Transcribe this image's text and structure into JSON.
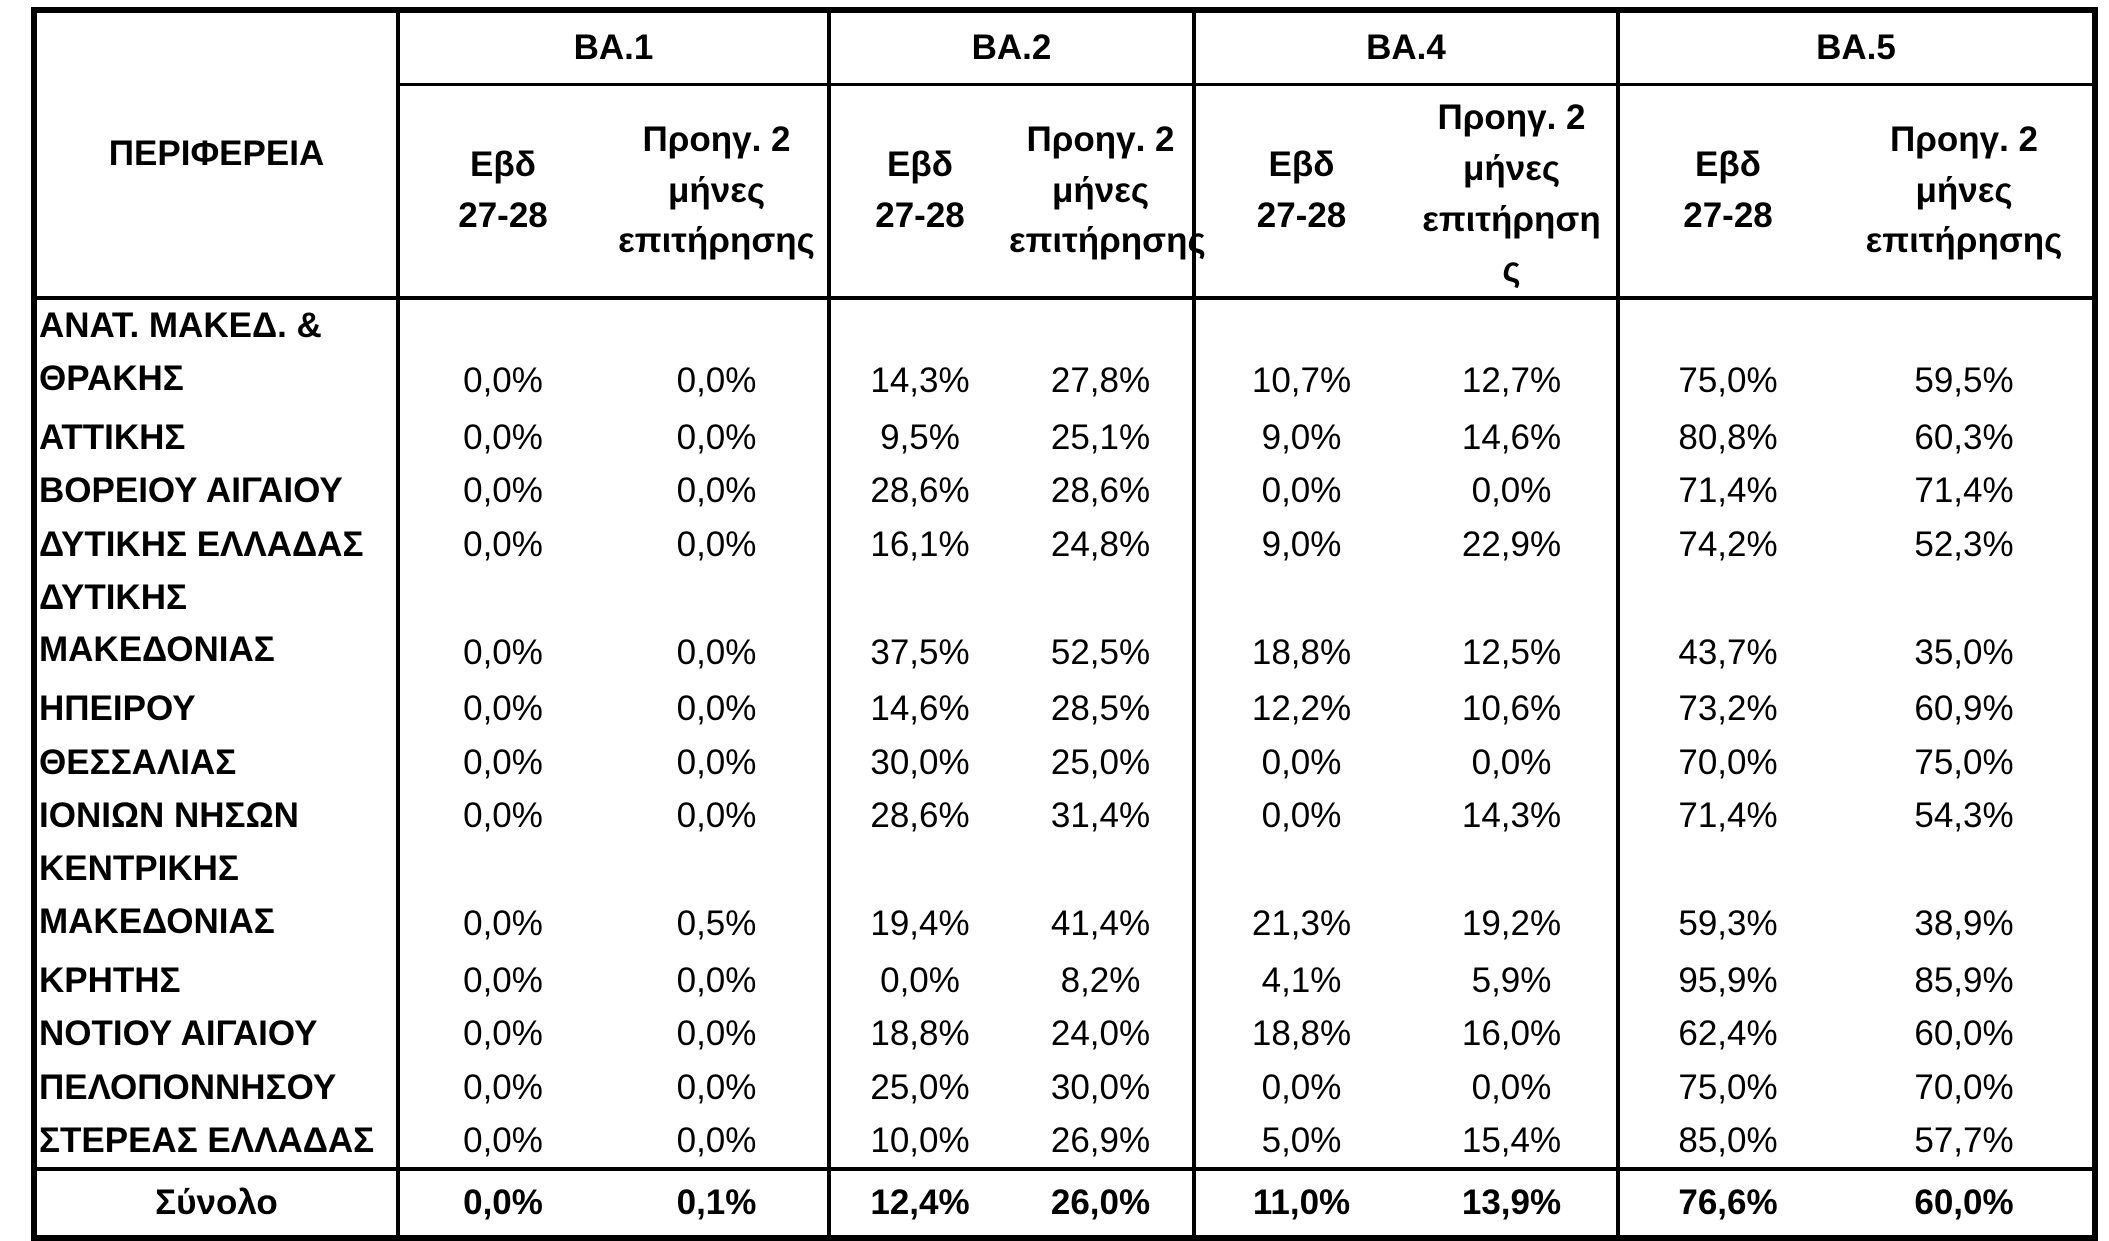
{
  "table": {
    "region_header": "ΠΕΡΙΦΕΡΕΙΑ",
    "groups": [
      "ΒΑ.1",
      "ΒΑ.2",
      "ΒΑ.4",
      "ΒΑ.5"
    ],
    "subheaders": [
      [
        "Εβδ",
        "27-28"
      ],
      [
        "Προηγ. 2",
        "μήνες",
        "επιτήρησης"
      ],
      [
        "Εβδ",
        "27-28"
      ],
      [
        "Προηγ. 2",
        "μήνες",
        "επιτήρησης"
      ],
      [
        "Εβδ",
        "27-28"
      ],
      [
        "Προηγ. 2",
        "μήνες",
        "επιτήρηση",
        "ς"
      ],
      [
        "Εβδ",
        "27-28"
      ],
      [
        "Προηγ. 2",
        "μήνες",
        "επιτήρησης"
      ]
    ],
    "rows": [
      {
        "name": [
          "ΑΝΑΤ. ΜΑΚΕΔ. &",
          "ΘΡΑΚΗΣ"
        ],
        "values": [
          "0,0%",
          "0,0%",
          "14,3%",
          "27,8%",
          "10,7%",
          "12,7%",
          "75,0%",
          "59,5%"
        ]
      },
      {
        "name": [
          "ΑΤΤΙΚΗΣ"
        ],
        "values": [
          "0,0%",
          "0,0%",
          "9,5%",
          "25,1%",
          "9,0%",
          "14,6%",
          "80,8%",
          "60,3%"
        ]
      },
      {
        "name": [
          "ΒΟΡΕΙΟΥ ΑΙΓΑΙΟΥ"
        ],
        "values": [
          "0,0%",
          "0,0%",
          "28,6%",
          "28,6%",
          "0,0%",
          "0,0%",
          "71,4%",
          "71,4%"
        ]
      },
      {
        "name": [
          "ΔΥΤΙΚΗΣ ΕΛΛΑΔΑΣ"
        ],
        "values": [
          "0,0%",
          "0,0%",
          "16,1%",
          "24,8%",
          "9,0%",
          "22,9%",
          "74,2%",
          "52,3%"
        ]
      },
      {
        "name": [
          "ΔΥΤΙΚΗΣ",
          "ΜΑΚΕΔΟΝΙΑΣ"
        ],
        "values": [
          "0,0%",
          "0,0%",
          "37,5%",
          "52,5%",
          "18,8%",
          "12,5%",
          "43,7%",
          "35,0%"
        ]
      },
      {
        "name": [
          "ΗΠΕΙΡΟΥ"
        ],
        "values": [
          "0,0%",
          "0,0%",
          "14,6%",
          "28,5%",
          "12,2%",
          "10,6%",
          "73,2%",
          "60,9%"
        ]
      },
      {
        "name": [
          "ΘΕΣΣΑΛΙΑΣ"
        ],
        "values": [
          "0,0%",
          "0,0%",
          "30,0%",
          "25,0%",
          "0,0%",
          "0,0%",
          "70,0%",
          "75,0%"
        ]
      },
      {
        "name": [
          "ΙΟΝΙΩΝ ΝΗΣΩΝ"
        ],
        "values": [
          "0,0%",
          "0,0%",
          "28,6%",
          "31,4%",
          "0,0%",
          "14,3%",
          "71,4%",
          "54,3%"
        ]
      },
      {
        "name": [
          "ΚΕΝΤΡΙΚΗΣ",
          "ΜΑΚΕΔΟΝΙΑΣ"
        ],
        "values": [
          "0,0%",
          "0,5%",
          "19,4%",
          "41,4%",
          "21,3%",
          "19,2%",
          "59,3%",
          "38,9%"
        ]
      },
      {
        "name": [
          "ΚΡΗΤΗΣ"
        ],
        "values": [
          "0,0%",
          "0,0%",
          "0,0%",
          "8,2%",
          "4,1%",
          "5,9%",
          "95,9%",
          "85,9%"
        ]
      },
      {
        "name": [
          "ΝΟΤΙΟΥ ΑΙΓΑΙΟΥ"
        ],
        "values": [
          "0,0%",
          "0,0%",
          "18,8%",
          "24,0%",
          "18,8%",
          "16,0%",
          "62,4%",
          "60,0%"
        ]
      },
      {
        "name": [
          "ΠΕΛΟΠΟΝΝΗΣΟΥ"
        ],
        "values": [
          "0,0%",
          "0,0%",
          "25,0%",
          "30,0%",
          "0,0%",
          "0,0%",
          "75,0%",
          "70,0%"
        ]
      },
      {
        "name": [
          "ΣΤΕΡΕΑΣ ΕΛΛΑΔΑΣ"
        ],
        "values": [
          "0,0%",
          "0,0%",
          "10,0%",
          "26,9%",
          "5,0%",
          "15,4%",
          "85,0%",
          "57,7%"
        ]
      }
    ],
    "total": {
      "name": "Σύνολο",
      "values": [
        "0,0%",
        "0,1%",
        "12,4%",
        "26,0%",
        "11,0%",
        "13,9%",
        "76,6%",
        "60,0%"
      ]
    }
  }
}
